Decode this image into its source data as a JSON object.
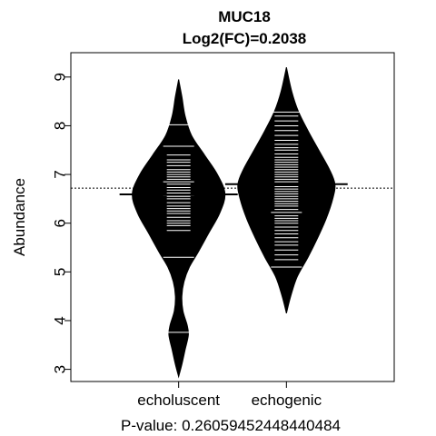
{
  "chart_data": {
    "type": "beanplot",
    "title": "MUC18",
    "subtitle": "Log2(FC)=0.2038",
    "xlabel": "P-value: 0.26059452448440484",
    "ylabel": "Abundance",
    "categories": [
      "echoluscent",
      "echogenic"
    ],
    "ylim": [
      2.75,
      9.5
    ],
    "yticks": [
      3,
      4,
      5,
      6,
      7,
      8,
      9
    ],
    "overall_mean": 6.72,
    "colors": {
      "bean_fill": "#000000",
      "data_lines": "#ffffff",
      "mean_line": "#000000",
      "overall_mean_line": "#000000"
    },
    "series": [
      {
        "category": "echoluscent",
        "mean": 6.59,
        "density": [
          [
            2.85,
            0.0
          ],
          [
            3.1,
            0.03
          ],
          [
            3.4,
            0.06
          ],
          [
            3.7,
            0.09
          ],
          [
            3.9,
            0.08
          ],
          [
            4.2,
            0.04
          ],
          [
            4.5,
            0.03
          ],
          [
            4.8,
            0.05
          ],
          [
            5.1,
            0.1
          ],
          [
            5.4,
            0.18
          ],
          [
            5.8,
            0.28
          ],
          [
            6.2,
            0.38
          ],
          [
            6.6,
            0.43
          ],
          [
            7.0,
            0.36
          ],
          [
            7.4,
            0.24
          ],
          [
            7.8,
            0.12
          ],
          [
            8.2,
            0.06
          ],
          [
            8.6,
            0.03
          ],
          [
            8.95,
            0.0
          ]
        ],
        "points": [
          3.76,
          5.3,
          5.85,
          5.95,
          6.0,
          6.05,
          6.12,
          6.2,
          6.25,
          6.3,
          6.35,
          6.42,
          6.5,
          6.55,
          6.58,
          6.62,
          6.68,
          6.73,
          6.8,
          6.85,
          6.9,
          6.95,
          7.0,
          7.05,
          7.1,
          7.18,
          7.25,
          7.3,
          7.4,
          7.58,
          8.02
        ],
        "wide_points": [
          3.76,
          5.3,
          6.58,
          6.85,
          7.58,
          8.02
        ]
      },
      {
        "category": "echogenic",
        "mean": 6.8,
        "density": [
          [
            4.15,
            0.0
          ],
          [
            4.5,
            0.04
          ],
          [
            4.9,
            0.1
          ],
          [
            5.3,
            0.2
          ],
          [
            5.7,
            0.29
          ],
          [
            6.1,
            0.37
          ],
          [
            6.5,
            0.43
          ],
          [
            6.8,
            0.45
          ],
          [
            7.1,
            0.4
          ],
          [
            7.5,
            0.3
          ],
          [
            7.9,
            0.2
          ],
          [
            8.3,
            0.11
          ],
          [
            8.7,
            0.05
          ],
          [
            9.2,
            0.0
          ]
        ],
        "points": [
          5.1,
          5.25,
          5.35,
          5.45,
          5.55,
          5.62,
          5.7,
          5.78,
          5.85,
          5.92,
          6.0,
          6.05,
          6.1,
          6.15,
          6.22,
          6.28,
          6.35,
          6.4,
          6.45,
          6.5,
          6.55,
          6.6,
          6.65,
          6.7,
          6.75,
          6.8,
          6.85,
          6.9,
          6.95,
          7.0,
          7.05,
          7.1,
          7.15,
          7.2,
          7.25,
          7.3,
          7.35,
          7.42,
          7.5,
          7.55,
          7.62,
          7.7,
          7.8,
          7.9,
          8.0,
          8.1,
          8.2,
          8.28
        ],
        "wide_points": [
          5.1,
          6.22,
          8.28
        ]
      }
    ]
  }
}
